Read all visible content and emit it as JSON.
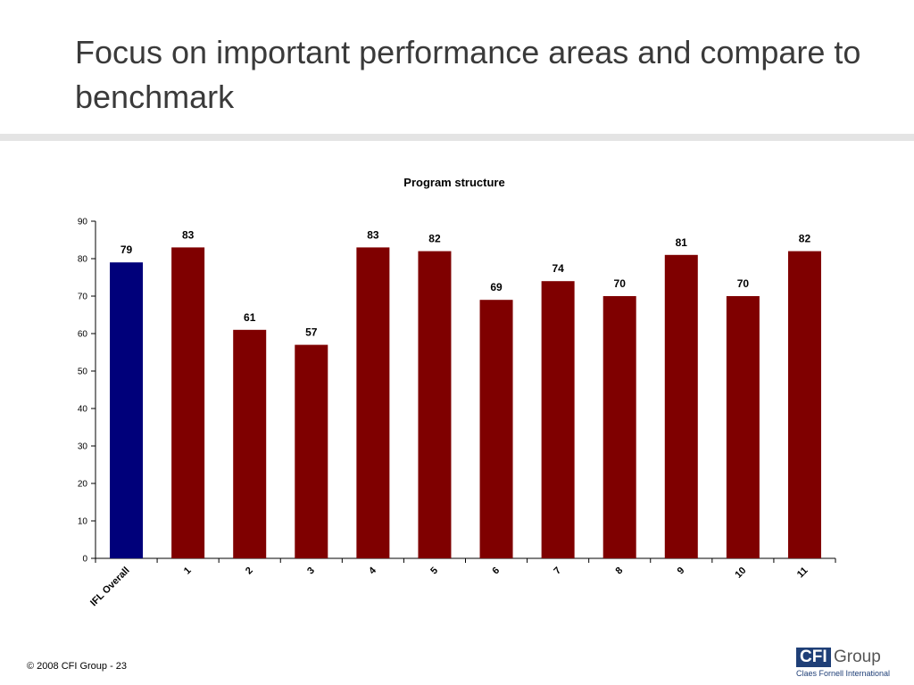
{
  "slide": {
    "title": "Focus on important performance areas and compare to benchmark",
    "footer": "© 2008 CFI Group - 23"
  },
  "logo": {
    "box_text": "CFI",
    "word": "Group",
    "tagline": "Claes Fornell International"
  },
  "colors": {
    "benchmark_bar": "#00007a",
    "bar": "#7f0000"
  },
  "chart_data": {
    "type": "bar",
    "title": "Program structure",
    "xlabel": "",
    "ylabel": "",
    "ylim": [
      0,
      90
    ],
    "yticks": [
      0,
      10,
      20,
      30,
      40,
      50,
      60,
      70,
      80,
      90
    ],
    "categories": [
      "IFL Overall",
      "1",
      "2",
      "3",
      "4",
      "5",
      "6",
      "7",
      "8",
      "9",
      "10",
      "11"
    ],
    "values": [
      79,
      83,
      61,
      57,
      83,
      82,
      69,
      74,
      70,
      81,
      70,
      82
    ],
    "data_labels": [
      "79",
      "83",
      "61",
      "57",
      "83",
      "82",
      "69",
      "74",
      "70",
      "81",
      "70",
      "82"
    ],
    "grid": false,
    "legend": "none"
  }
}
